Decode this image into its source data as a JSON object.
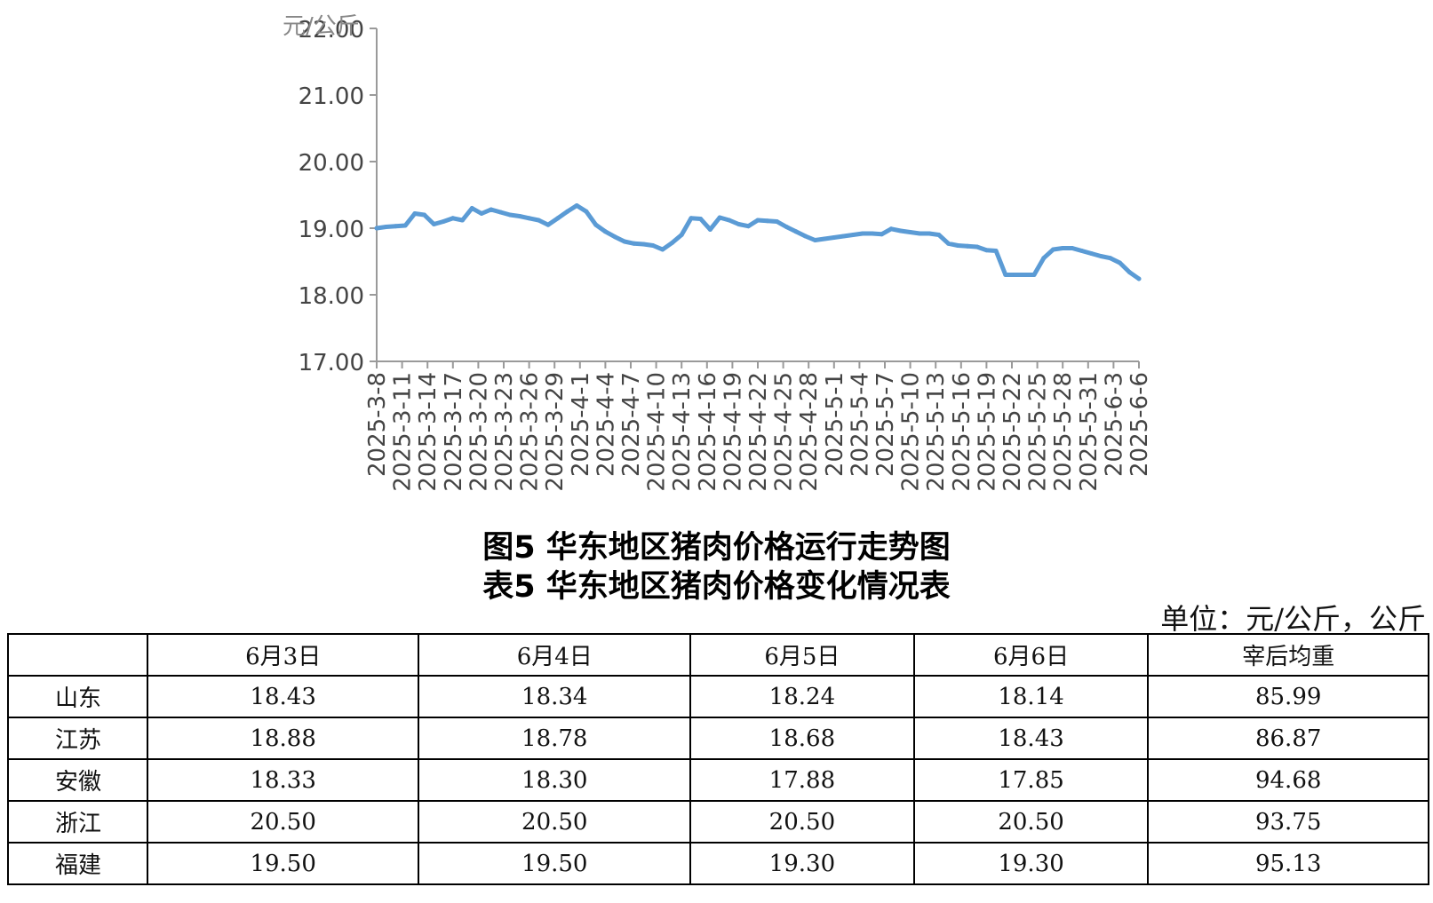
{
  "chart_data": {
    "type": "line",
    "ylabel": "元/公斤",
    "ylim": [
      17,
      22
    ],
    "yticks": [
      "17.00",
      "18.00",
      "19.00",
      "20.00",
      "21.00",
      "22.00"
    ],
    "xticks": [
      "2025-3-8",
      "2025-3-11",
      "2025-3-14",
      "2025-3-17",
      "2025-3-20",
      "2025-3-23",
      "2025-3-26",
      "2025-3-29",
      "2025-4-1",
      "2025-4-4",
      "2025-4-7",
      "2025-4-10",
      "2025-4-13",
      "2025-4-16",
      "2025-4-19",
      "2025-4-22",
      "2025-4-25",
      "2025-4-28",
      "2025-5-1",
      "2025-5-4",
      "2025-5-7",
      "2025-5-10",
      "2025-5-13",
      "2025-5-16",
      "2025-5-19",
      "2025-5-22",
      "2025-5-25",
      "2025-5-28",
      "2025-5-31",
      "2025-6-3",
      "2025-6-6"
    ],
    "line_color": "#5b9bd5",
    "series": [
      {
        "values": [
          19.0,
          19.02,
          19.03,
          19.04,
          19.22,
          19.2,
          19.06,
          19.1,
          19.15,
          19.12,
          19.3,
          19.22,
          19.28,
          19.24,
          19.2,
          19.18,
          19.15,
          19.12,
          19.05,
          19.15,
          19.25,
          19.34,
          19.25,
          19.05,
          18.95,
          18.87,
          18.8,
          18.77,
          18.76,
          18.74,
          18.68,
          18.78,
          18.9,
          19.15,
          19.14,
          18.98,
          19.16,
          19.12,
          19.06,
          19.03,
          19.12,
          19.11,
          19.1,
          19.02,
          18.95,
          18.88,
          18.82,
          18.84,
          18.86,
          18.88,
          18.9,
          18.92,
          18.92,
          18.91,
          18.99,
          18.96,
          18.94,
          18.92,
          18.92,
          18.9,
          18.77,
          18.74,
          18.73,
          18.72,
          18.67,
          18.66,
          18.3,
          18.3,
          18.3,
          18.3,
          18.55,
          18.68,
          18.7,
          18.7,
          18.66,
          18.62,
          18.58,
          18.55,
          18.48,
          18.34,
          18.24
        ]
      }
    ]
  },
  "captions": {
    "figure": "图5 华东地区猪肉价格运行走势图",
    "table": "表5 华东地区猪肉价格变化情况表"
  },
  "table": {
    "unit": "单位：元/公斤，公斤",
    "headers": [
      "",
      "6月3日",
      "6月4日",
      "6月5日",
      "6月6日",
      "宰后均重"
    ],
    "rows": [
      {
        "region": "山东",
        "values": [
          "18.43",
          "18.34",
          "18.24",
          "18.14",
          "85.99"
        ]
      },
      {
        "region": "江苏",
        "values": [
          "18.88",
          "18.78",
          "18.68",
          "18.43",
          "86.87"
        ]
      },
      {
        "region": "安徽",
        "values": [
          "18.33",
          "18.30",
          "17.88",
          "17.85",
          "94.68"
        ]
      },
      {
        "region": "浙江",
        "values": [
          "20.50",
          "20.50",
          "20.50",
          "20.50",
          "93.75"
        ]
      },
      {
        "region": "福建",
        "values": [
          "19.50",
          "19.50",
          "19.30",
          "19.30",
          "95.13"
        ]
      }
    ]
  }
}
